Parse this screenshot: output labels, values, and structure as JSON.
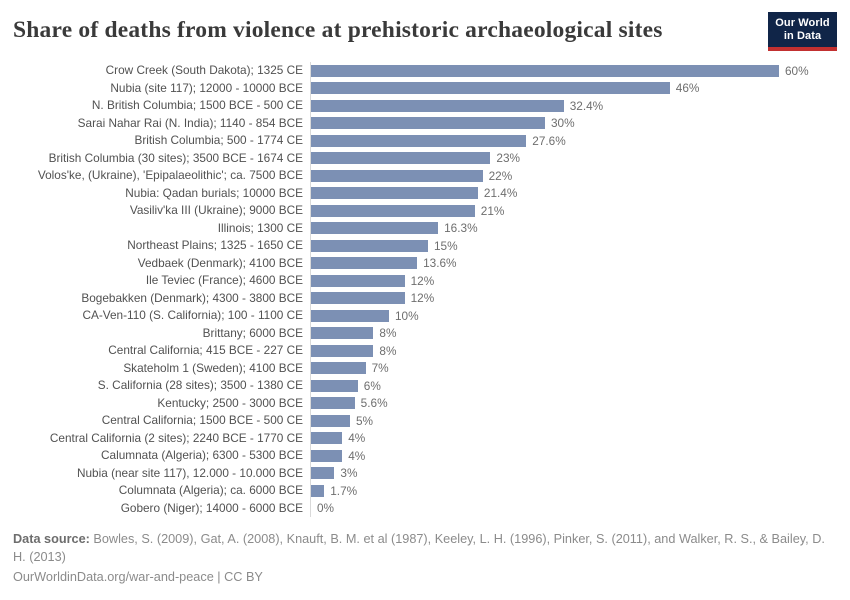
{
  "header": {
    "title": "Share of deaths from violence at prehistoric archaeological sites",
    "logo": {
      "line1": "Our World",
      "line2": "in Data"
    }
  },
  "chart_data": {
    "type": "bar",
    "orientation": "horizontal",
    "title": "Share of deaths from violence at prehistoric archaeological sites",
    "xlabel": "",
    "ylabel": "",
    "unit": "%",
    "xlim": [
      0,
      60
    ],
    "grid": false,
    "legend": "none",
    "bar_color": "#7c90b4",
    "categories": [
      "Crow Creek (South Dakota); 1325 CE",
      "Nubia (site 117); 12000 - 10000 BCE",
      "N. British Columbia; 1500 BCE - 500 CE",
      "Sarai Nahar Rai (N. India); 1140 - 854 BCE",
      "British Columbia; 500 - 1774 CE",
      "British Columbia (30 sites); 3500 BCE - 1674 CE",
      "Volos'ke, (Ukraine), 'Epipalaeolithic'; ca. 7500 BCE",
      "Nubia: Qadan burials; 10000 BCE",
      "Vasiliv'ka III (Ukraine); 9000 BCE",
      "Illinois; 1300 CE",
      "Northeast Plains; 1325 - 1650 CE",
      "Vedbaek (Denmark); 4100 BCE",
      "Ile Teviec (France); 4600 BCE",
      "Bogebakken (Denmark); 4300 - 3800 BCE",
      "CA-Ven-110 (S. California); 100 - 1100 CE",
      "Brittany; 6000 BCE",
      "Central California; 415 BCE - 227 CE",
      "Skateholm 1 (Sweden); 4100 BCE",
      "S. California (28 sites); 3500 - 1380 CE",
      "Kentucky; 2500 - 3000 BCE",
      "Central California; 1500 BCE - 500 CE",
      "Central California (2 sites); 2240 BCE - 1770 CE",
      "Calumnata (Algeria); 6300 - 5300 BCE",
      "Nubia (near site 117), 12.000 - 10.000 BCE",
      "Columnata (Algeria); ca. 6000 BCE",
      "Gobero (Niger); 14000 - 6000 BCE"
    ],
    "values": [
      60,
      46,
      32.4,
      30,
      27.6,
      23,
      22,
      21.4,
      21,
      16.3,
      15,
      13.6,
      12,
      12,
      10,
      8,
      8,
      7,
      6,
      5.6,
      5,
      4,
      4,
      3,
      1.7,
      0
    ],
    "value_labels": [
      "60%",
      "46%",
      "32.4%",
      "30%",
      "27.6%",
      "23%",
      "22%",
      "21.4%",
      "21%",
      "16.3%",
      "15%",
      "13.6%",
      "12%",
      "12%",
      "10%",
      "8%",
      "8%",
      "7%",
      "6%",
      "5.6%",
      "5%",
      "4%",
      "4%",
      "3%",
      "1.7%",
      "0%"
    ]
  },
  "footer": {
    "data_source_label": "Data source:",
    "data_source_text": " Bowles, S. (2009), Gat, A. (2008), Knauft, B. M. et al (1987), Keeley, L. H. (1996), Pinker, S. (2011), and Walker, R. S., & Bailey, D. H. (2013)",
    "url_line": "OurWorldinData.org/war-and-peace | CC BY"
  },
  "colors": {
    "bar": "#7c90b4",
    "axis_line": "#d9d9d9",
    "title_text": "#3a3a3a",
    "label_text": "#515151",
    "value_text": "#6e6e6e",
    "footer_text": "#8b8b8b",
    "logo_navy": "#102548",
    "logo_red": "#c23030"
  }
}
